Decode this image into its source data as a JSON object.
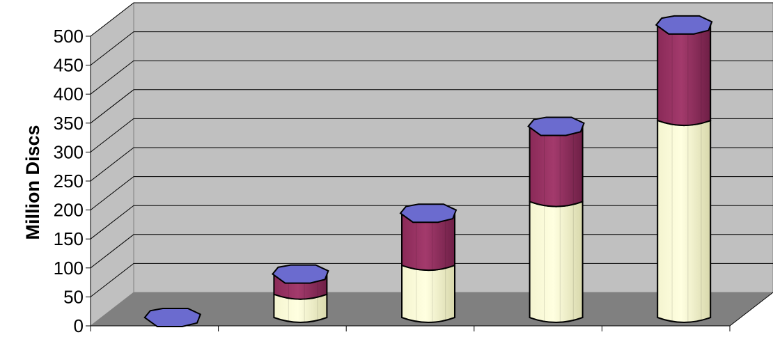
{
  "chart_data": {
    "type": "bar",
    "stacked": true,
    "three_d": true,
    "title": "",
    "xlabel": "",
    "ylabel": "Million Discs",
    "ylim": [
      0,
      500
    ],
    "yticks": [
      0,
      50,
      100,
      150,
      200,
      250,
      300,
      350,
      400,
      450,
      500
    ],
    "grid": true,
    "legend": "none",
    "categories": [
      "",
      "",
      "",
      "",
      ""
    ],
    "series": [
      {
        "values": [
          0,
          40,
          90,
          200,
          340
        ],
        "color": "#ffffcc"
      },
      {
        "values": [
          0,
          35,
          90,
          130,
          165
        ],
        "color": "#993366"
      }
    ],
    "colors": {
      "wall": "#c0c0c0",
      "floor": "#808080",
      "top": "#6b6bcf",
      "grid": "#000000"
    }
  }
}
